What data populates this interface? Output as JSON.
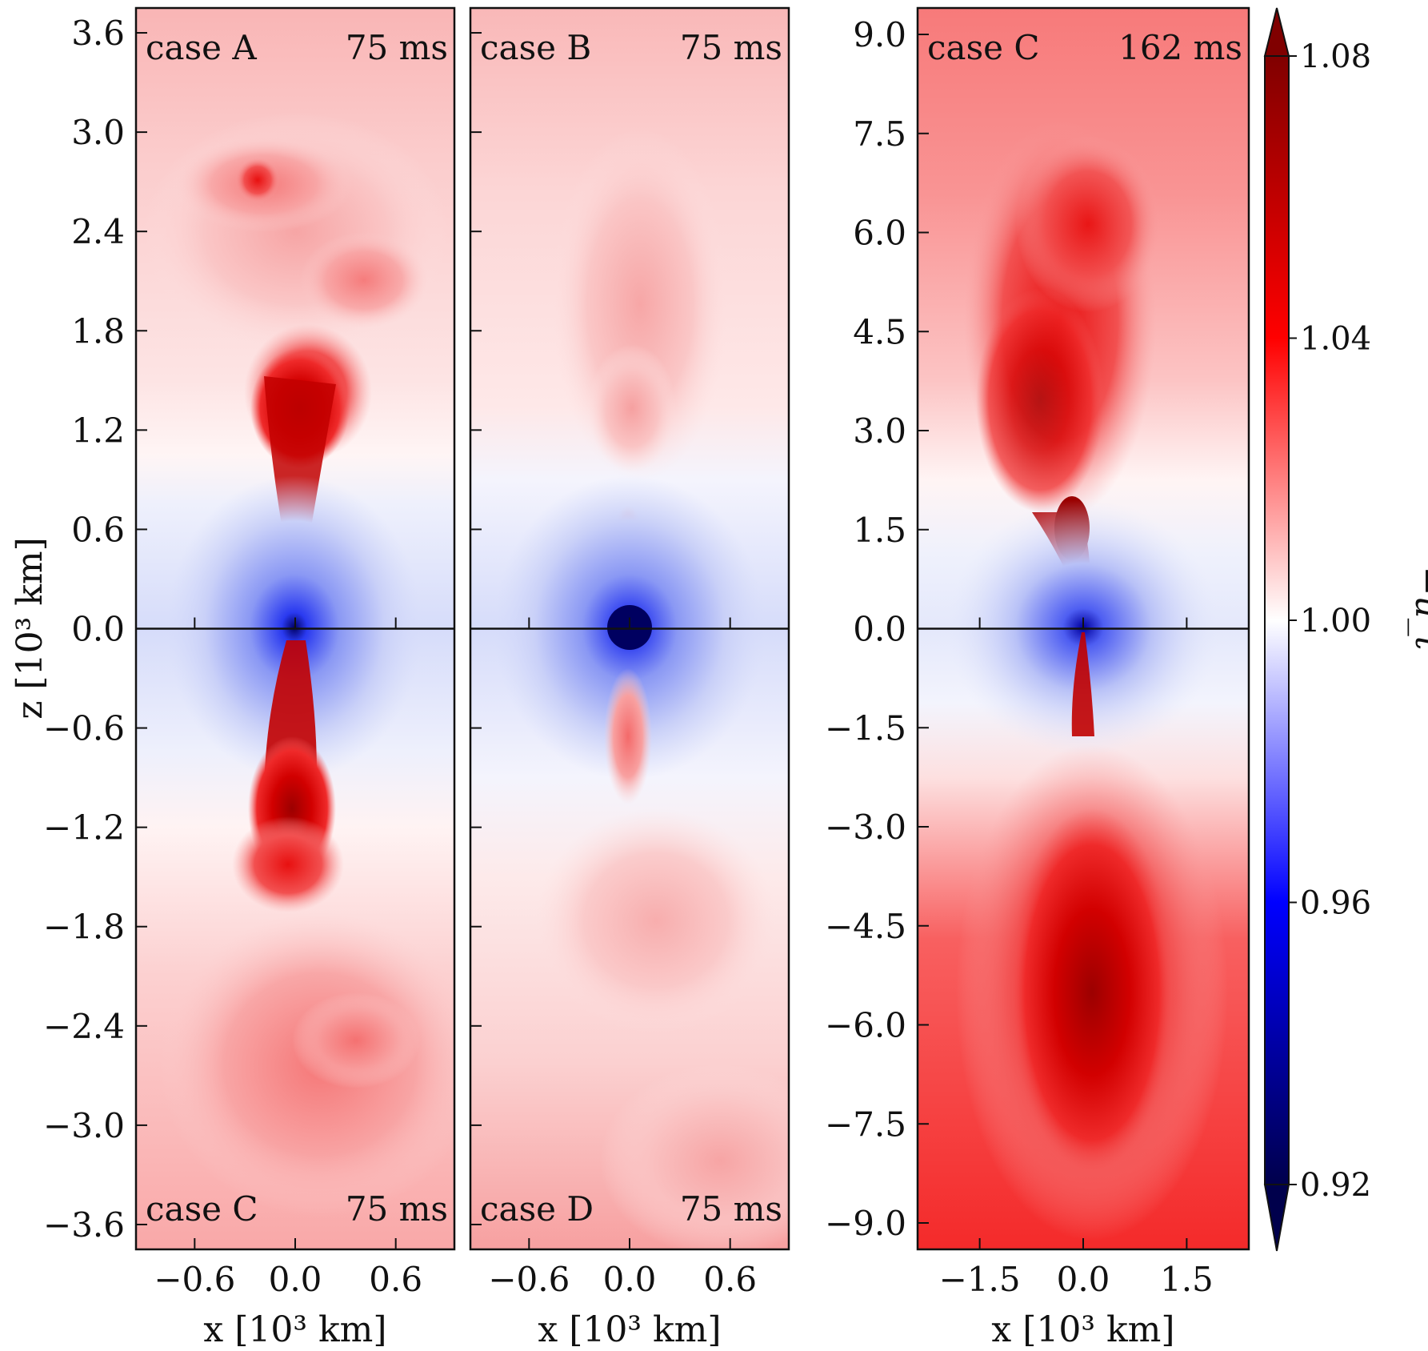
{
  "chart_data": {
    "type": "heatmap",
    "quantity": "−u_t",
    "colormap": {
      "name": "seismic",
      "colorbar_label": "−u_t",
      "vmin": 0.92,
      "vmax": 1.08,
      "ticks": [
        0.92,
        0.96,
        1.0,
        1.04,
        1.08
      ],
      "tick_labels": [
        "0.92",
        "0.96",
        "1.00",
        "1.04",
        "1.08"
      ],
      "extend": "both",
      "colors": {
        "low": "#00004c",
        "mid_low": "#0000ff",
        "mid": "#ffffff",
        "mid_high": "#ff0000",
        "high": "#800000"
      }
    },
    "ylabel": "z [10³ km]",
    "panels": [
      {
        "id": "left",
        "xlabel": "x [10³ km]",
        "xlim": [
          -0.95,
          0.95
        ],
        "ylim": [
          -3.75,
          3.75
        ],
        "xticks": [
          -0.6,
          0.0,
          0.6
        ],
        "xtick_labels": [
          "−0.6",
          "0.0",
          "0.6"
        ],
        "yticks": [
          -3.6,
          -3.0,
          -2.4,
          -1.8,
          -1.2,
          -0.6,
          0.0,
          0.6,
          1.2,
          1.8,
          2.4,
          3.0,
          3.6
        ],
        "ytick_labels": [
          "−3.6",
          "−3.0",
          "−2.4",
          "−1.8",
          "−1.2",
          "−0.6",
          "0.0",
          "0.6",
          "1.2",
          "1.8",
          "2.4",
          "3.0",
          "3.6"
        ],
        "show_ytick_labels": true,
        "top_label": {
          "case": "case A",
          "time": "75 ms"
        },
        "bottom_label": {
          "case": "case C",
          "time": "75 ms"
        }
      },
      {
        "id": "middle",
        "xlabel": "x [10³ km]",
        "xlim": [
          -0.95,
          0.95
        ],
        "ylim": [
          -3.75,
          3.75
        ],
        "xticks": [
          -0.6,
          0.0,
          0.6
        ],
        "xtick_labels": [
          "−0.6",
          "0.0",
          "0.6"
        ],
        "yticks": [
          -3.6,
          -3.0,
          -2.4,
          -1.8,
          -1.2,
          -0.6,
          0.0,
          0.6,
          1.2,
          1.8,
          2.4,
          3.0,
          3.6
        ],
        "ytick_labels": [],
        "show_ytick_labels": false,
        "top_label": {
          "case": "case B",
          "time": "75 ms"
        },
        "bottom_label": {
          "case": "case D",
          "time": "75 ms"
        }
      },
      {
        "id": "right",
        "xlabel": "x [10³ km]",
        "xlim": [
          -2.4,
          2.4
        ],
        "ylim": [
          -9.4,
          9.4
        ],
        "xticks": [
          -1.5,
          0.0,
          1.5
        ],
        "xtick_labels": [
          "−1.5",
          "0.0",
          "1.5"
        ],
        "yticks": [
          -9.0,
          -7.5,
          -6.0,
          -4.5,
          -3.0,
          -1.5,
          0.0,
          1.5,
          3.0,
          4.5,
          6.0,
          7.5,
          9.0
        ],
        "ytick_labels": [
          "−9.0",
          "−7.5",
          "−6.0",
          "−4.5",
          "−3.0",
          "−1.5",
          "0.0",
          "1.5",
          "3.0",
          "4.5",
          "6.0",
          "7.5",
          "9.0"
        ],
        "show_ytick_labels": true,
        "top_label": {
          "case": "case C",
          "time": "162 ms"
        },
        "bottom_label": null
      }
    ]
  }
}
